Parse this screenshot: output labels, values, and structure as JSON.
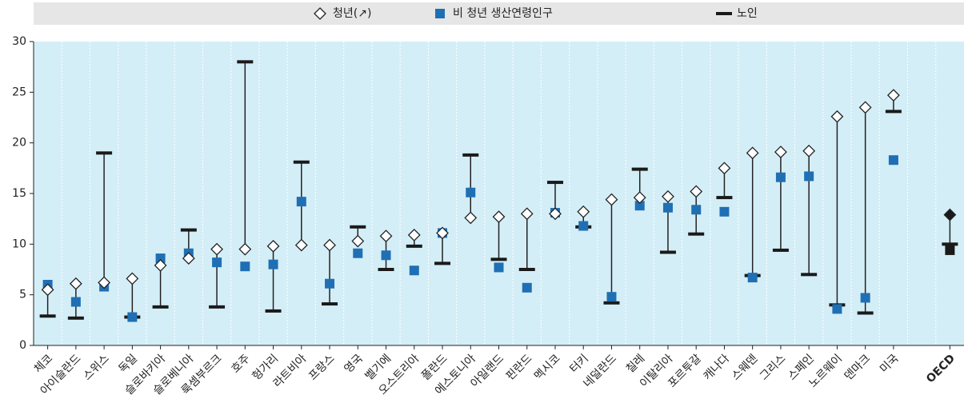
{
  "chart_data": {
    "type": "dot-range",
    "categories": [
      "체코",
      "아이슬란드",
      "스위스",
      "독일",
      "슬로바키아",
      "슬로베니아",
      "룩셈부르크",
      "호주",
      "헝가리",
      "라트비아",
      "프랑스",
      "영국",
      "벨기에",
      "오스트리아",
      "폴란드",
      "에스토니아",
      "아일랜드",
      "핀란드",
      "멕시코",
      "터키",
      "네덜란드",
      "칠레",
      "이탈리아",
      "포르투갈",
      "캐나다",
      "스웨덴",
      "그리스",
      "스페인",
      "노르웨이",
      "덴마크",
      "미국",
      null,
      "OECD"
    ],
    "series": [
      {
        "name": "청년(↗)",
        "color": "#ffffff",
        "marker": "diamond",
        "values": [
          5.5,
          6.1,
          6.2,
          6.6,
          7.9,
          8.6,
          9.5,
          9.5,
          9.8,
          9.9,
          9.9,
          10.3,
          10.8,
          10.9,
          11.1,
          12.6,
          12.7,
          13.0,
          13.0,
          13.2,
          14.4,
          14.6,
          14.7,
          15.2,
          17.5,
          19.0,
          19.1,
          19.2,
          22.6,
          23.5,
          24.7,
          null,
          12.9
        ],
        "point_colors": [
          "#ffffff",
          "#ffffff",
          "#ffffff",
          "#ffffff",
          "#ffffff",
          "#ffffff",
          "#ffffff",
          "#ffffff",
          "#ffffff",
          "#ffffff",
          "#ffffff",
          "#ffffff",
          "#ffffff",
          "#ffffff",
          "#ffffff",
          "#ffffff",
          "#ffffff",
          "#ffffff",
          "#ffffff",
          "#ffffff",
          "#ffffff",
          "#ffffff",
          "#ffffff",
          "#ffffff",
          "#ffffff",
          "#ffffff",
          "#ffffff",
          "#ffffff",
          "#ffffff",
          "#ffffff",
          "#ffffff",
          null,
          "#1a1a1a"
        ]
      },
      {
        "name": "비 청년 생산연령인구",
        "color": "#1f6fb4",
        "marker": "square",
        "values": [
          6.0,
          4.3,
          5.8,
          2.8,
          8.6,
          9.1,
          8.2,
          7.8,
          8.0,
          14.2,
          6.1,
          9.1,
          8.9,
          7.4,
          11.1,
          15.1,
          7.7,
          5.7,
          13.1,
          11.8,
          4.8,
          13.8,
          13.6,
          13.4,
          13.2,
          6.7,
          16.6,
          16.7,
          3.6,
          4.7,
          18.3,
          null,
          9.4
        ],
        "point_colors": [
          "#1f6fb4",
          "#1f6fb4",
          "#1f6fb4",
          "#1f6fb4",
          "#1f6fb4",
          "#1f6fb4",
          "#1f6fb4",
          "#1f6fb4",
          "#1f6fb4",
          "#1f6fb4",
          "#1f6fb4",
          "#1f6fb4",
          "#1f6fb4",
          "#1f6fb4",
          "#1f6fb4",
          "#1f6fb4",
          "#1f6fb4",
          "#1f6fb4",
          "#1f6fb4",
          "#1f6fb4",
          "#1f6fb4",
          "#1f6fb4",
          "#1f6fb4",
          "#1f6fb4",
          "#1f6fb4",
          "#1f6fb4",
          "#1f6fb4",
          "#1f6fb4",
          "#1f6fb4",
          "#1f6fb4",
          "#1f6fb4",
          null,
          "#1a1a1a"
        ]
      },
      {
        "name": "노인",
        "color": "#1a1a1a",
        "marker": "dash",
        "values": [
          2.9,
          2.7,
          19.0,
          2.8,
          3.8,
          11.4,
          3.8,
          28.0,
          3.4,
          18.1,
          4.1,
          11.7,
          7.5,
          9.8,
          8.1,
          18.8,
          8.5,
          7.5,
          16.1,
          11.7,
          4.2,
          17.4,
          9.2,
          11.0,
          14.6,
          6.9,
          9.4,
          7.0,
          4.0,
          3.2,
          23.1,
          null,
          10.0
        ]
      }
    ],
    "ylim": [
      0,
      30
    ],
    "yticks": [
      0,
      5,
      10,
      15,
      20,
      25,
      30
    ],
    "background": "#d4eef7"
  }
}
